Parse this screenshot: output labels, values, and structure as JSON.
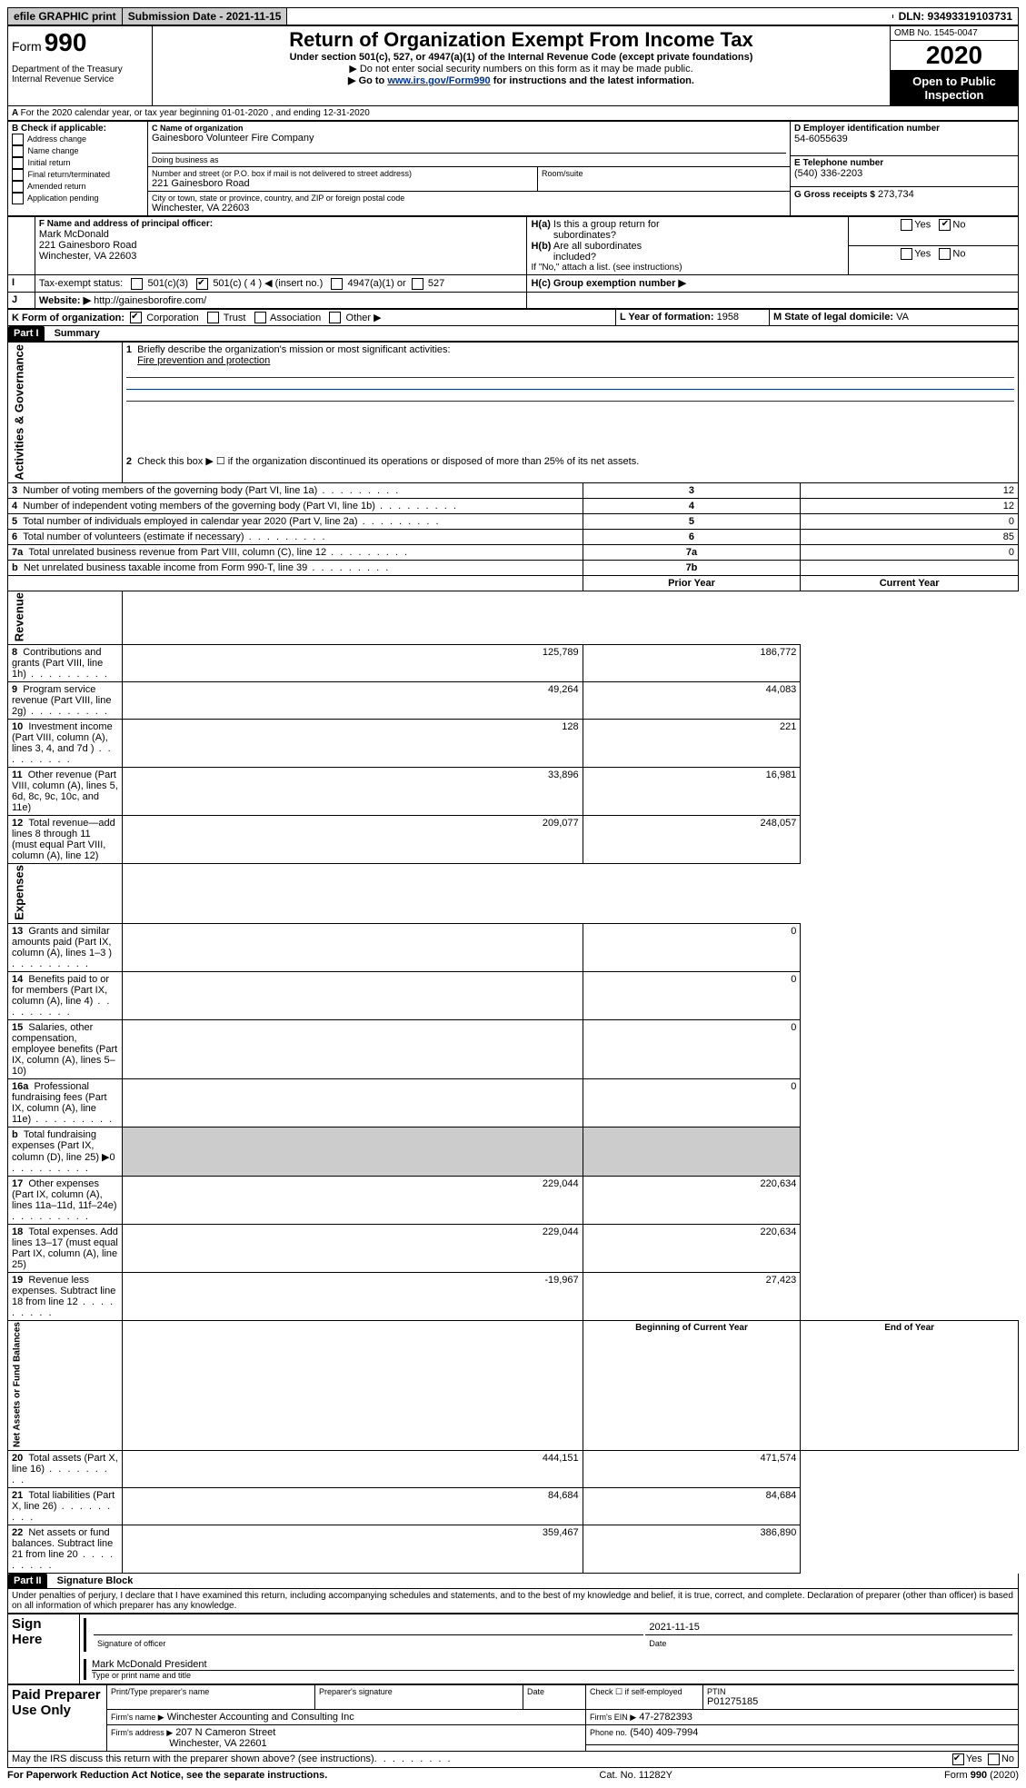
{
  "header_bar": {
    "efile_label": "efile GRAPHIC print",
    "submission_label": "Submission Date - 2021-11-15",
    "dln": "DLN: 93493319103731"
  },
  "title_block": {
    "form_prefix": "Form",
    "form_number": "990",
    "dept": "Department of the Treasury Internal Revenue Service",
    "main_title": "Return of Organization Exempt From Income Tax",
    "undersection": "Under section 501(c), 527, or 4947(a)(1) of the Internal Revenue Code (except private foundations)",
    "note1": "▶ Do not enter social security numbers on this form as it may be made public.",
    "note2_a": "▶ Go to ",
    "note2_link": "www.irs.gov/Form990",
    "note2_b": " for instructions and the latest information.",
    "omb": "OMB No. 1545-0047",
    "year": "2020",
    "openpub": "Open to Public Inspection"
  },
  "lineA": "For the 2020 calendar year, or tax year beginning 01-01-2020   , and ending 12-31-2020",
  "boxB": {
    "label": "B Check if applicable:",
    "opts": [
      "Address change",
      "Name change",
      "Initial return",
      "Final return/terminated",
      "Amended return",
      "Application pending"
    ]
  },
  "boxC": {
    "name_label": "C Name of organization",
    "org_name": "Gainesboro Volunteer Fire Company",
    "dba_label": "Doing business as",
    "street_label": "Number and street (or P.O. box if mail is not delivered to street address)",
    "room_label": "Room/suite",
    "street": "221 Gainesboro Road",
    "city_label": "City or town, state or province, country, and ZIP or foreign postal code",
    "city": "Winchester, VA  22603"
  },
  "boxD": {
    "label": "D Employer identification number",
    "value": "54-6055639"
  },
  "boxE": {
    "label": "E Telephone number",
    "value": "(540) 336-2203"
  },
  "boxG": {
    "label": "G Gross receipts $",
    "value": "273,734"
  },
  "boxF": {
    "label": "F Name and address of principal officer:",
    "name": "Mark McDonald",
    "addr1": "221 Gainesboro Road",
    "addr2": "Winchester, VA  22603"
  },
  "boxH": {
    "a_label": "H(a)  Is this a group return for subordinates?",
    "b_label": "H(b)  Are all subordinates included?",
    "b_note": "If \"No,\" attach a list. (see instructions)",
    "c_label": "H(c)  Group exemption number ▶",
    "yes": "Yes",
    "no": "No"
  },
  "boxI": {
    "label": "Tax-exempt status:",
    "o1": "501(c)(3)",
    "o2": "501(c) ( 4 ) ◀ (insert no.)",
    "o3": "4947(a)(1) or",
    "o4": "527"
  },
  "boxJ": {
    "label": "Website: ▶",
    "value": "http://gainesborofire.com/"
  },
  "boxK": {
    "label": "K Form of organization:",
    "o1": "Corporation",
    "o2": "Trust",
    "o3": "Association",
    "o4": "Other ▶"
  },
  "boxL": {
    "label": "L Year of formation:",
    "value": "1958"
  },
  "boxM": {
    "label": "M State of legal domicile:",
    "value": "VA"
  },
  "part1": {
    "hdr": "Part I",
    "title": "Summary",
    "vert_ag": "Activities & Governance",
    "vert_rev": "Revenue",
    "vert_exp": "Expenses",
    "vert_net": "Net Assets or Fund Balances",
    "l1_label": "Briefly describe the organization's mission or most significant activities:",
    "l1_val": "Fire prevention and protection",
    "l2": "Check this box ▶ ☐  if the organization discontinued its operations or disposed of more than 25% of its net assets.",
    "rows_ag": [
      {
        "n": "3",
        "label": "Number of voting members of the governing body (Part VI, line 1a)",
        "box": "3",
        "val": "12"
      },
      {
        "n": "4",
        "label": "Number of independent voting members of the governing body (Part VI, line 1b)",
        "box": "4",
        "val": "12"
      },
      {
        "n": "5",
        "label": "Total number of individuals employed in calendar year 2020 (Part V, line 2a)",
        "box": "5",
        "val": "0"
      },
      {
        "n": "6",
        "label": "Total number of volunteers (estimate if necessary)",
        "box": "6",
        "val": "85"
      },
      {
        "n": "7a",
        "label": "Total unrelated business revenue from Part VIII, column (C), line 12",
        "box": "7a",
        "val": "0"
      },
      {
        "n": "b",
        "label": "Net unrelated business taxable income from Form 990-T, line 39",
        "box": "7b",
        "val": ""
      }
    ],
    "col_py": "Prior Year",
    "col_cy": "Current Year",
    "rows_rev": [
      {
        "n": "8",
        "label": "Contributions and grants (Part VIII, line 1h)",
        "py": "125,789",
        "cy": "186,772"
      },
      {
        "n": "9",
        "label": "Program service revenue (Part VIII, line 2g)",
        "py": "49,264",
        "cy": "44,083"
      },
      {
        "n": "10",
        "label": "Investment income (Part VIII, column (A), lines 3, 4, and 7d )",
        "py": "128",
        "cy": "221"
      },
      {
        "n": "11",
        "label": "Other revenue (Part VIII, column (A), lines 5, 6d, 8c, 9c, 10c, and 11e)",
        "py": "33,896",
        "cy": "16,981"
      },
      {
        "n": "12",
        "label": "Total revenue—add lines 8 through 11 (must equal Part VIII, column (A), line 12)",
        "py": "209,077",
        "cy": "248,057"
      }
    ],
    "rows_exp": [
      {
        "n": "13",
        "label": "Grants and similar amounts paid (Part IX, column (A), lines 1–3 )",
        "py": "",
        "cy": "0"
      },
      {
        "n": "14",
        "label": "Benefits paid to or for members (Part IX, column (A), line 4)",
        "py": "",
        "cy": "0"
      },
      {
        "n": "15",
        "label": "Salaries, other compensation, employee benefits (Part IX, column (A), lines 5–10)",
        "py": "",
        "cy": "0"
      },
      {
        "n": "16a",
        "label": "Professional fundraising fees (Part IX, column (A), line 11e)",
        "py": "",
        "cy": "0"
      },
      {
        "n": "b",
        "label": "Total fundraising expenses (Part IX, column (D), line 25) ▶0",
        "py": "GREY",
        "cy": "GREY"
      },
      {
        "n": "17",
        "label": "Other expenses (Part IX, column (A), lines 11a–11d, 11f–24e)",
        "py": "229,044",
        "cy": "220,634"
      },
      {
        "n": "18",
        "label": "Total expenses. Add lines 13–17 (must equal Part IX, column (A), line 25)",
        "py": "229,044",
        "cy": "220,634"
      },
      {
        "n": "19",
        "label": "Revenue less expenses. Subtract line 18 from line 12",
        "py": "-19,967",
        "cy": "27,423"
      }
    ],
    "col_boy": "Beginning of Current Year",
    "col_eoy": "End of Year",
    "rows_net": [
      {
        "n": "20",
        "label": "Total assets (Part X, line 16)",
        "py": "444,151",
        "cy": "471,574"
      },
      {
        "n": "21",
        "label": "Total liabilities (Part X, line 26)",
        "py": "84,684",
        "cy": "84,684"
      },
      {
        "n": "22",
        "label": "Net assets or fund balances. Subtract line 21 from line 20",
        "py": "359,467",
        "cy": "386,890"
      }
    ]
  },
  "part2": {
    "hdr": "Part II",
    "title": "Signature Block",
    "decl": "Under penalties of perjury, I declare that I have examined this return, including accompanying schedules and statements, and to the best of my knowledge and belief, it is true, correct, and complete. Declaration of preparer (other than officer) is based on all information of which preparer has any knowledge.",
    "sign_here": "Sign Here",
    "sig_officer": "Signature of officer",
    "sig_date": "Date",
    "sig_date_val": "2021-11-15",
    "officer_name": "Mark McDonald President",
    "type_name": "Type or print name and title",
    "paid_prep": "Paid Preparer Use Only",
    "pp_name_label": "Print/Type preparer's name",
    "pp_sig_label": "Preparer's signature",
    "pp_date_label": "Date",
    "pp_check": "Check ☐ if self-employed",
    "ptin_label": "PTIN",
    "ptin": "P01275185",
    "firm_name_label": "Firm's name    ▶",
    "firm_name": "Winchester Accounting and Consulting Inc",
    "firm_ein_label": "Firm's EIN ▶",
    "firm_ein": "47-2782393",
    "firm_addr_label": "Firm's address ▶",
    "firm_addr1": "207 N Cameron Street",
    "firm_addr2": "Winchester, VA  22601",
    "phone_label": "Phone no.",
    "phone": "(540) 409-7994",
    "discuss": "May the IRS discuss this return with the preparer shown above? (see instructions)"
  },
  "footer": {
    "pra": "For Paperwork Reduction Act Notice, see the separate instructions.",
    "cat": "Cat. No. 11282Y",
    "form": "Form 990 (2020)"
  }
}
